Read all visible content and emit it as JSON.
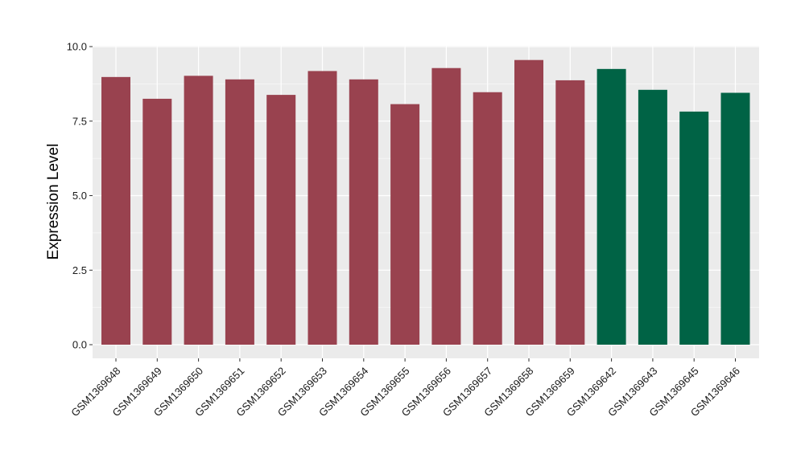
{
  "chart_data": {
    "type": "bar",
    "title": "",
    "xlabel": "",
    "ylabel": "Expression Level",
    "ylim": [
      0,
      10
    ],
    "yticks": [
      "0.0",
      "2.5",
      "5.0",
      "7.5",
      "10.0"
    ],
    "grid": true,
    "categories": [
      "GSM1369648",
      "GSM1369649",
      "GSM1369650",
      "GSM1369651",
      "GSM1369652",
      "GSM1369653",
      "GSM1369654",
      "GSM1369655",
      "GSM1369656",
      "GSM1369657",
      "GSM1369658",
      "GSM1369659",
      "GSM1369642",
      "GSM1369643",
      "GSM1369645",
      "GSM1369646"
    ],
    "values": [
      8.98,
      8.25,
      9.02,
      8.9,
      8.38,
      9.18,
      8.9,
      8.07,
      9.28,
      8.47,
      9.55,
      8.87,
      9.25,
      8.55,
      7.82,
      8.45
    ],
    "colors": [
      "#99424f",
      "#99424f",
      "#99424f",
      "#99424f",
      "#99424f",
      "#99424f",
      "#99424f",
      "#99424f",
      "#99424f",
      "#99424f",
      "#99424f",
      "#99424f",
      "#006345",
      "#006345",
      "#006345",
      "#006345"
    ],
    "panel_color": "#ebebeb",
    "gridline_color": "#ffffff"
  }
}
